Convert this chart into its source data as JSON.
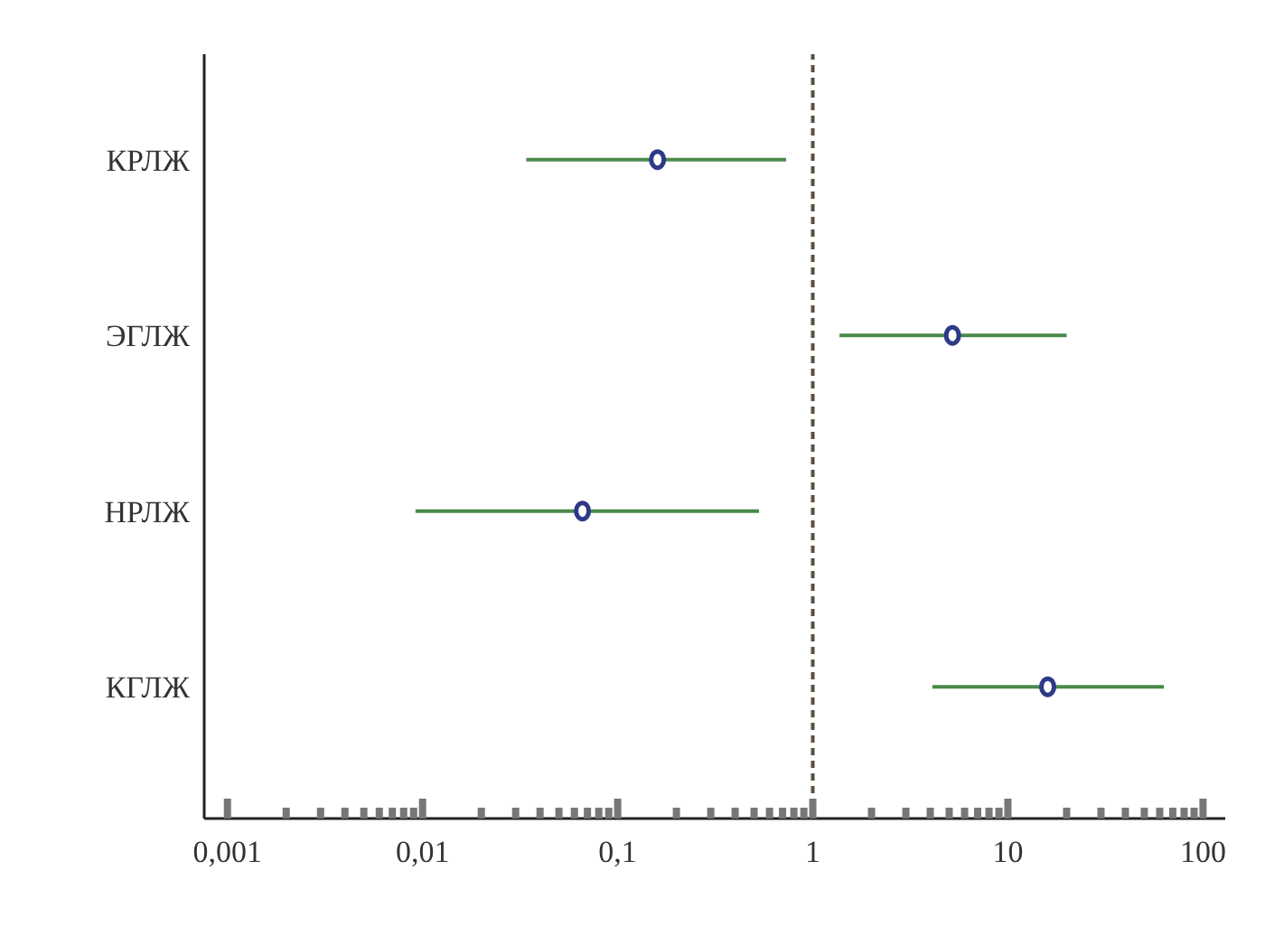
{
  "chart_data": {
    "type": "scatter",
    "orientation": "horizontal",
    "categories": [
      "КРЛЖ",
      "ЭГЛЖ",
      "НРЛЖ",
      "КГЛЖ"
    ],
    "values": [
      0.16,
      5.2,
      0.066,
      16
    ],
    "errors": [
      [
        0.034,
        0.73
      ],
      [
        1.37,
        20
      ],
      [
        0.0092,
        0.53
      ],
      [
        4.1,
        63
      ]
    ],
    "color": "#2e3a87",
    "marker": "circle",
    "log": "x",
    "grid": false,
    "xlim": [
      0.00076,
      130
    ],
    "xticks": [
      {
        "value": 0.001,
        "label": "0,001"
      },
      {
        "value": 0.002,
        "label": null
      },
      {
        "value": 0.003,
        "label": null
      },
      {
        "value": 0.004,
        "label": null
      },
      {
        "value": 0.005,
        "label": null
      },
      {
        "value": 0.006,
        "label": null
      },
      {
        "value": 0.007,
        "label": null
      },
      {
        "value": 0.008,
        "label": null
      },
      {
        "value": 0.009,
        "label": null
      },
      {
        "value": 0.01,
        "label": "0,01"
      },
      {
        "value": 0.02,
        "label": null
      },
      {
        "value": 0.03,
        "label": null
      },
      {
        "value": 0.04,
        "label": null
      },
      {
        "value": 0.05,
        "label": null
      },
      {
        "value": 0.06,
        "label": null
      },
      {
        "value": 0.07,
        "label": null
      },
      {
        "value": 0.08,
        "label": null
      },
      {
        "value": 0.09,
        "label": null
      },
      {
        "value": 0.1,
        "label": "0,1"
      },
      {
        "value": 0.2,
        "label": null
      },
      {
        "value": 0.3,
        "label": null
      },
      {
        "value": 0.4,
        "label": null
      },
      {
        "value": 0.5,
        "label": null
      },
      {
        "value": 0.6,
        "label": null
      },
      {
        "value": 0.7,
        "label": null
      },
      {
        "value": 0.8,
        "label": null
      },
      {
        "value": 0.9,
        "label": null
      },
      1,
      {
        "value": 2,
        "label": null
      },
      {
        "value": 3,
        "label": null
      },
      {
        "value": 4,
        "label": null
      },
      {
        "value": 5,
        "label": null
      },
      {
        "value": 6,
        "label": null
      },
      {
        "value": 7,
        "label": null
      },
      {
        "value": 8,
        "label": null
      },
      {
        "value": 9,
        "label": null
      },
      10,
      {
        "value": 20,
        "label": null
      },
      {
        "value": 30,
        "label": null
      },
      {
        "value": 40,
        "label": null
      },
      {
        "value": 50,
        "label": null
      },
      {
        "value": 60,
        "label": null
      },
      {
        "value": 70,
        "label": null
      },
      {
        "value": 80,
        "label": null
      },
      {
        "value": 90,
        "label": null
      },
      100
    ],
    "ref_lines": [
      {
        "axis": "x",
        "value": 1,
        "label": null,
        "color": "#5a5040",
        "line_style": "dashed"
      }
    ]
  }
}
